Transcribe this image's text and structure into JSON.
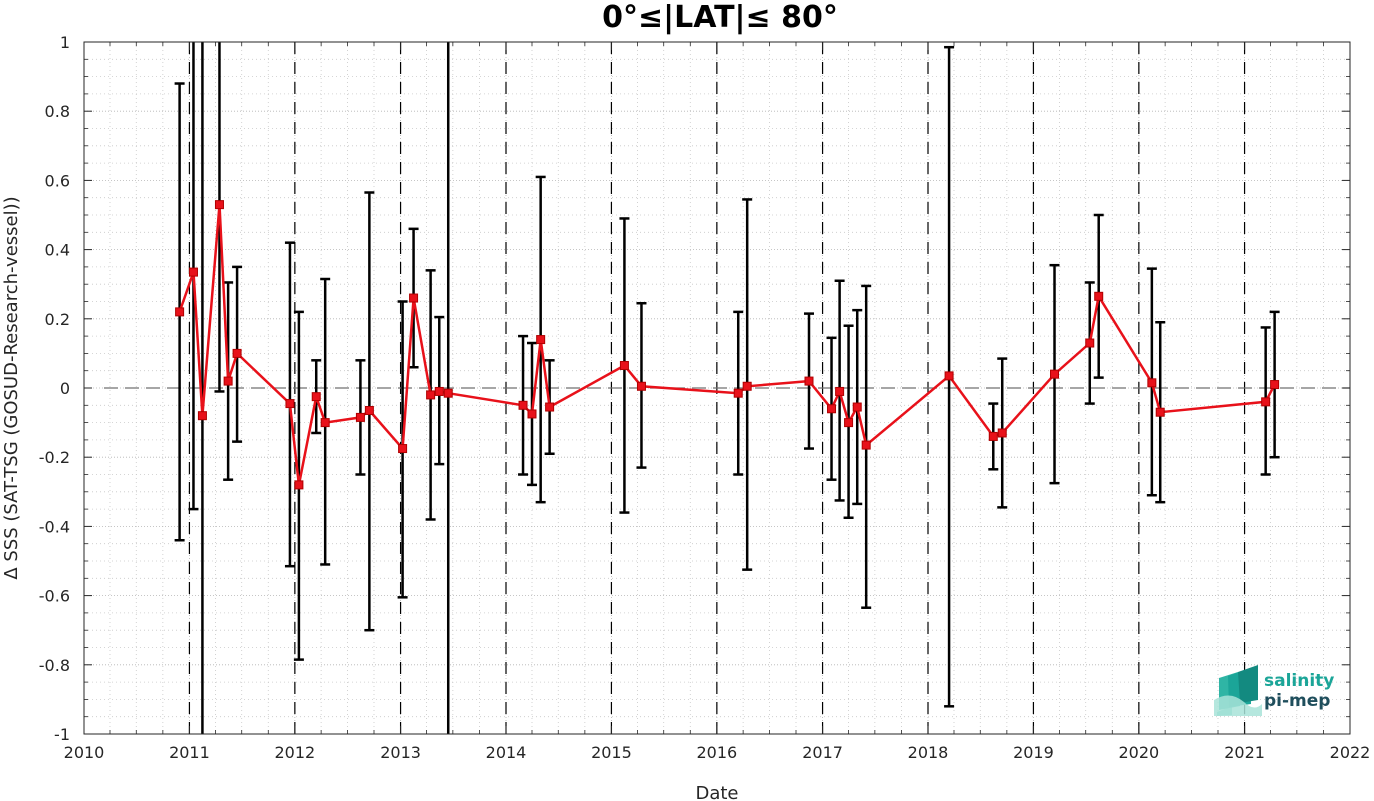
{
  "chart_data": {
    "type": "line",
    "title": "0°≤|LAT|≤ 80°",
    "xlabel": "Date",
    "ylabel": "Δ SSS (SAT-TSG (GOSUD-Research-vessel))",
    "xlim": [
      "2010-01-01",
      "2022-01-01"
    ],
    "ylim": [
      -1,
      1
    ],
    "x_ticks": [
      "2010-01-01",
      "2011-01-01",
      "2012-01-01",
      "2013-01-01",
      "2014-01-01",
      "2015-01-01",
      "2016-01-01",
      "2017-01-01",
      "2018-01-01",
      "2019-01-01",
      "2020-01-01",
      "2021-01-01",
      "2022-01-01"
    ],
    "x_tick_labels": [
      "2010",
      "2011",
      "2012",
      "2013",
      "2014",
      "2015",
      "2016",
      "2017",
      "2018",
      "2019",
      "2020",
      "2021",
      "2022"
    ],
    "y_ticks": [
      -1,
      -0.8,
      -0.6,
      -0.4,
      -0.2,
      0,
      0.2,
      0.4,
      0.6,
      0.8,
      1
    ],
    "y_tick_labels": [
      "-1",
      "-0.8",
      "-0.6",
      "-0.4",
      "-0.2",
      "0",
      "0.2",
      "0.4",
      "0.6",
      "0.8",
      "1"
    ],
    "grid": true,
    "year_boundaries_dashed": true,
    "zero_reference_line": 0,
    "series_color": "#e8111a",
    "errorbar_color": "#000000",
    "points": [
      {
        "date": "2010-11-28",
        "y": 0.22,
        "lo": -0.44,
        "hi": 0.88
      },
      {
        "date": "2011-01-15",
        "y": 0.335,
        "lo": -0.35,
        "hi": 1.35
      },
      {
        "date": "2011-02-15",
        "y": -0.08,
        "lo": -1.4,
        "hi": 1.5
      },
      {
        "date": "2011-04-15",
        "y": 0.53,
        "lo": -0.01,
        "hi": 1.2
      },
      {
        "date": "2011-05-15",
        "y": 0.02,
        "lo": -0.265,
        "hi": 0.305
      },
      {
        "date": "2011-06-15",
        "y": 0.1,
        "lo": -0.155,
        "hi": 0.35
      },
      {
        "date": "2011-12-15",
        "y": -0.045,
        "lo": -0.515,
        "hi": 0.42
      },
      {
        "date": "2012-01-15",
        "y": -0.28,
        "lo": -0.785,
        "hi": 0.22
      },
      {
        "date": "2012-03-15",
        "y": -0.025,
        "lo": -0.13,
        "hi": 0.08
      },
      {
        "date": "2012-04-15",
        "y": -0.1,
        "lo": -0.51,
        "hi": 0.315
      },
      {
        "date": "2012-08-15",
        "y": -0.085,
        "lo": -0.25,
        "hi": 0.08
      },
      {
        "date": "2012-09-15",
        "y": -0.065,
        "lo": -0.7,
        "hi": 0.565
      },
      {
        "date": "2013-01-08",
        "y": -0.175,
        "lo": -0.605,
        "hi": 0.25
      },
      {
        "date": "2013-02-15",
        "y": 0.26,
        "lo": 0.06,
        "hi": 0.46
      },
      {
        "date": "2013-04-15",
        "y": -0.02,
        "lo": -0.38,
        "hi": 0.34
      },
      {
        "date": "2013-05-15",
        "y": -0.01,
        "lo": -0.22,
        "hi": 0.205
      },
      {
        "date": "2013-06-15",
        "y": -0.015,
        "lo": -1.4,
        "hi": 1.6
      },
      {
        "date": "2014-03-01",
        "y": -0.05,
        "lo": -0.25,
        "hi": 0.15
      },
      {
        "date": "2014-04-01",
        "y": -0.075,
        "lo": -0.28,
        "hi": 0.13
      },
      {
        "date": "2014-05-01",
        "y": 0.14,
        "lo": -0.33,
        "hi": 0.61
      },
      {
        "date": "2014-06-01",
        "y": -0.055,
        "lo": -0.19,
        "hi": 0.08
      },
      {
        "date": "2015-02-15",
        "y": 0.065,
        "lo": -0.36,
        "hi": 0.49
      },
      {
        "date": "2015-04-15",
        "y": 0.005,
        "lo": -0.23,
        "hi": 0.245
      },
      {
        "date": "2016-03-15",
        "y": -0.015,
        "lo": -0.25,
        "hi": 0.22
      },
      {
        "date": "2016-04-15",
        "y": 0.005,
        "lo": -0.525,
        "hi": 0.545
      },
      {
        "date": "2016-11-15",
        "y": 0.02,
        "lo": -0.175,
        "hi": 0.215
      },
      {
        "date": "2017-02-01",
        "y": -0.06,
        "lo": -0.265,
        "hi": 0.145
      },
      {
        "date": "2017-03-01",
        "y": -0.01,
        "lo": -0.325,
        "hi": 0.31
      },
      {
        "date": "2017-04-01",
        "y": -0.1,
        "lo": -0.375,
        "hi": 0.18
      },
      {
        "date": "2017-05-01",
        "y": -0.055,
        "lo": -0.335,
        "hi": 0.225
      },
      {
        "date": "2017-06-01",
        "y": -0.165,
        "lo": -0.635,
        "hi": 0.295
      },
      {
        "date": "2018-03-15",
        "y": 0.035,
        "lo": -0.92,
        "hi": 0.985
      },
      {
        "date": "2018-08-15",
        "y": -0.14,
        "lo": -0.235,
        "hi": -0.045
      },
      {
        "date": "2018-09-15",
        "y": -0.13,
        "lo": -0.345,
        "hi": 0.085
      },
      {
        "date": "2019-03-15",
        "y": 0.04,
        "lo": -0.275,
        "hi": 0.355
      },
      {
        "date": "2019-07-15",
        "y": 0.13,
        "lo": -0.045,
        "hi": 0.305
      },
      {
        "date": "2019-08-15",
        "y": 0.265,
        "lo": 0.03,
        "hi": 0.5
      },
      {
        "date": "2020-02-15",
        "y": 0.015,
        "lo": -0.31,
        "hi": 0.345
      },
      {
        "date": "2020-03-15",
        "y": -0.07,
        "lo": -0.33,
        "hi": 0.19
      },
      {
        "date": "2021-03-15",
        "y": -0.04,
        "lo": -0.25,
        "hi": 0.175
      },
      {
        "date": "2021-04-15",
        "y": 0.01,
        "lo": -0.2,
        "hi": 0.22
      }
    ]
  },
  "logo": {
    "line1": "salinity",
    "line2": "pi-mep",
    "color1": "#1ba598",
    "color2": "#1f4e5c"
  }
}
